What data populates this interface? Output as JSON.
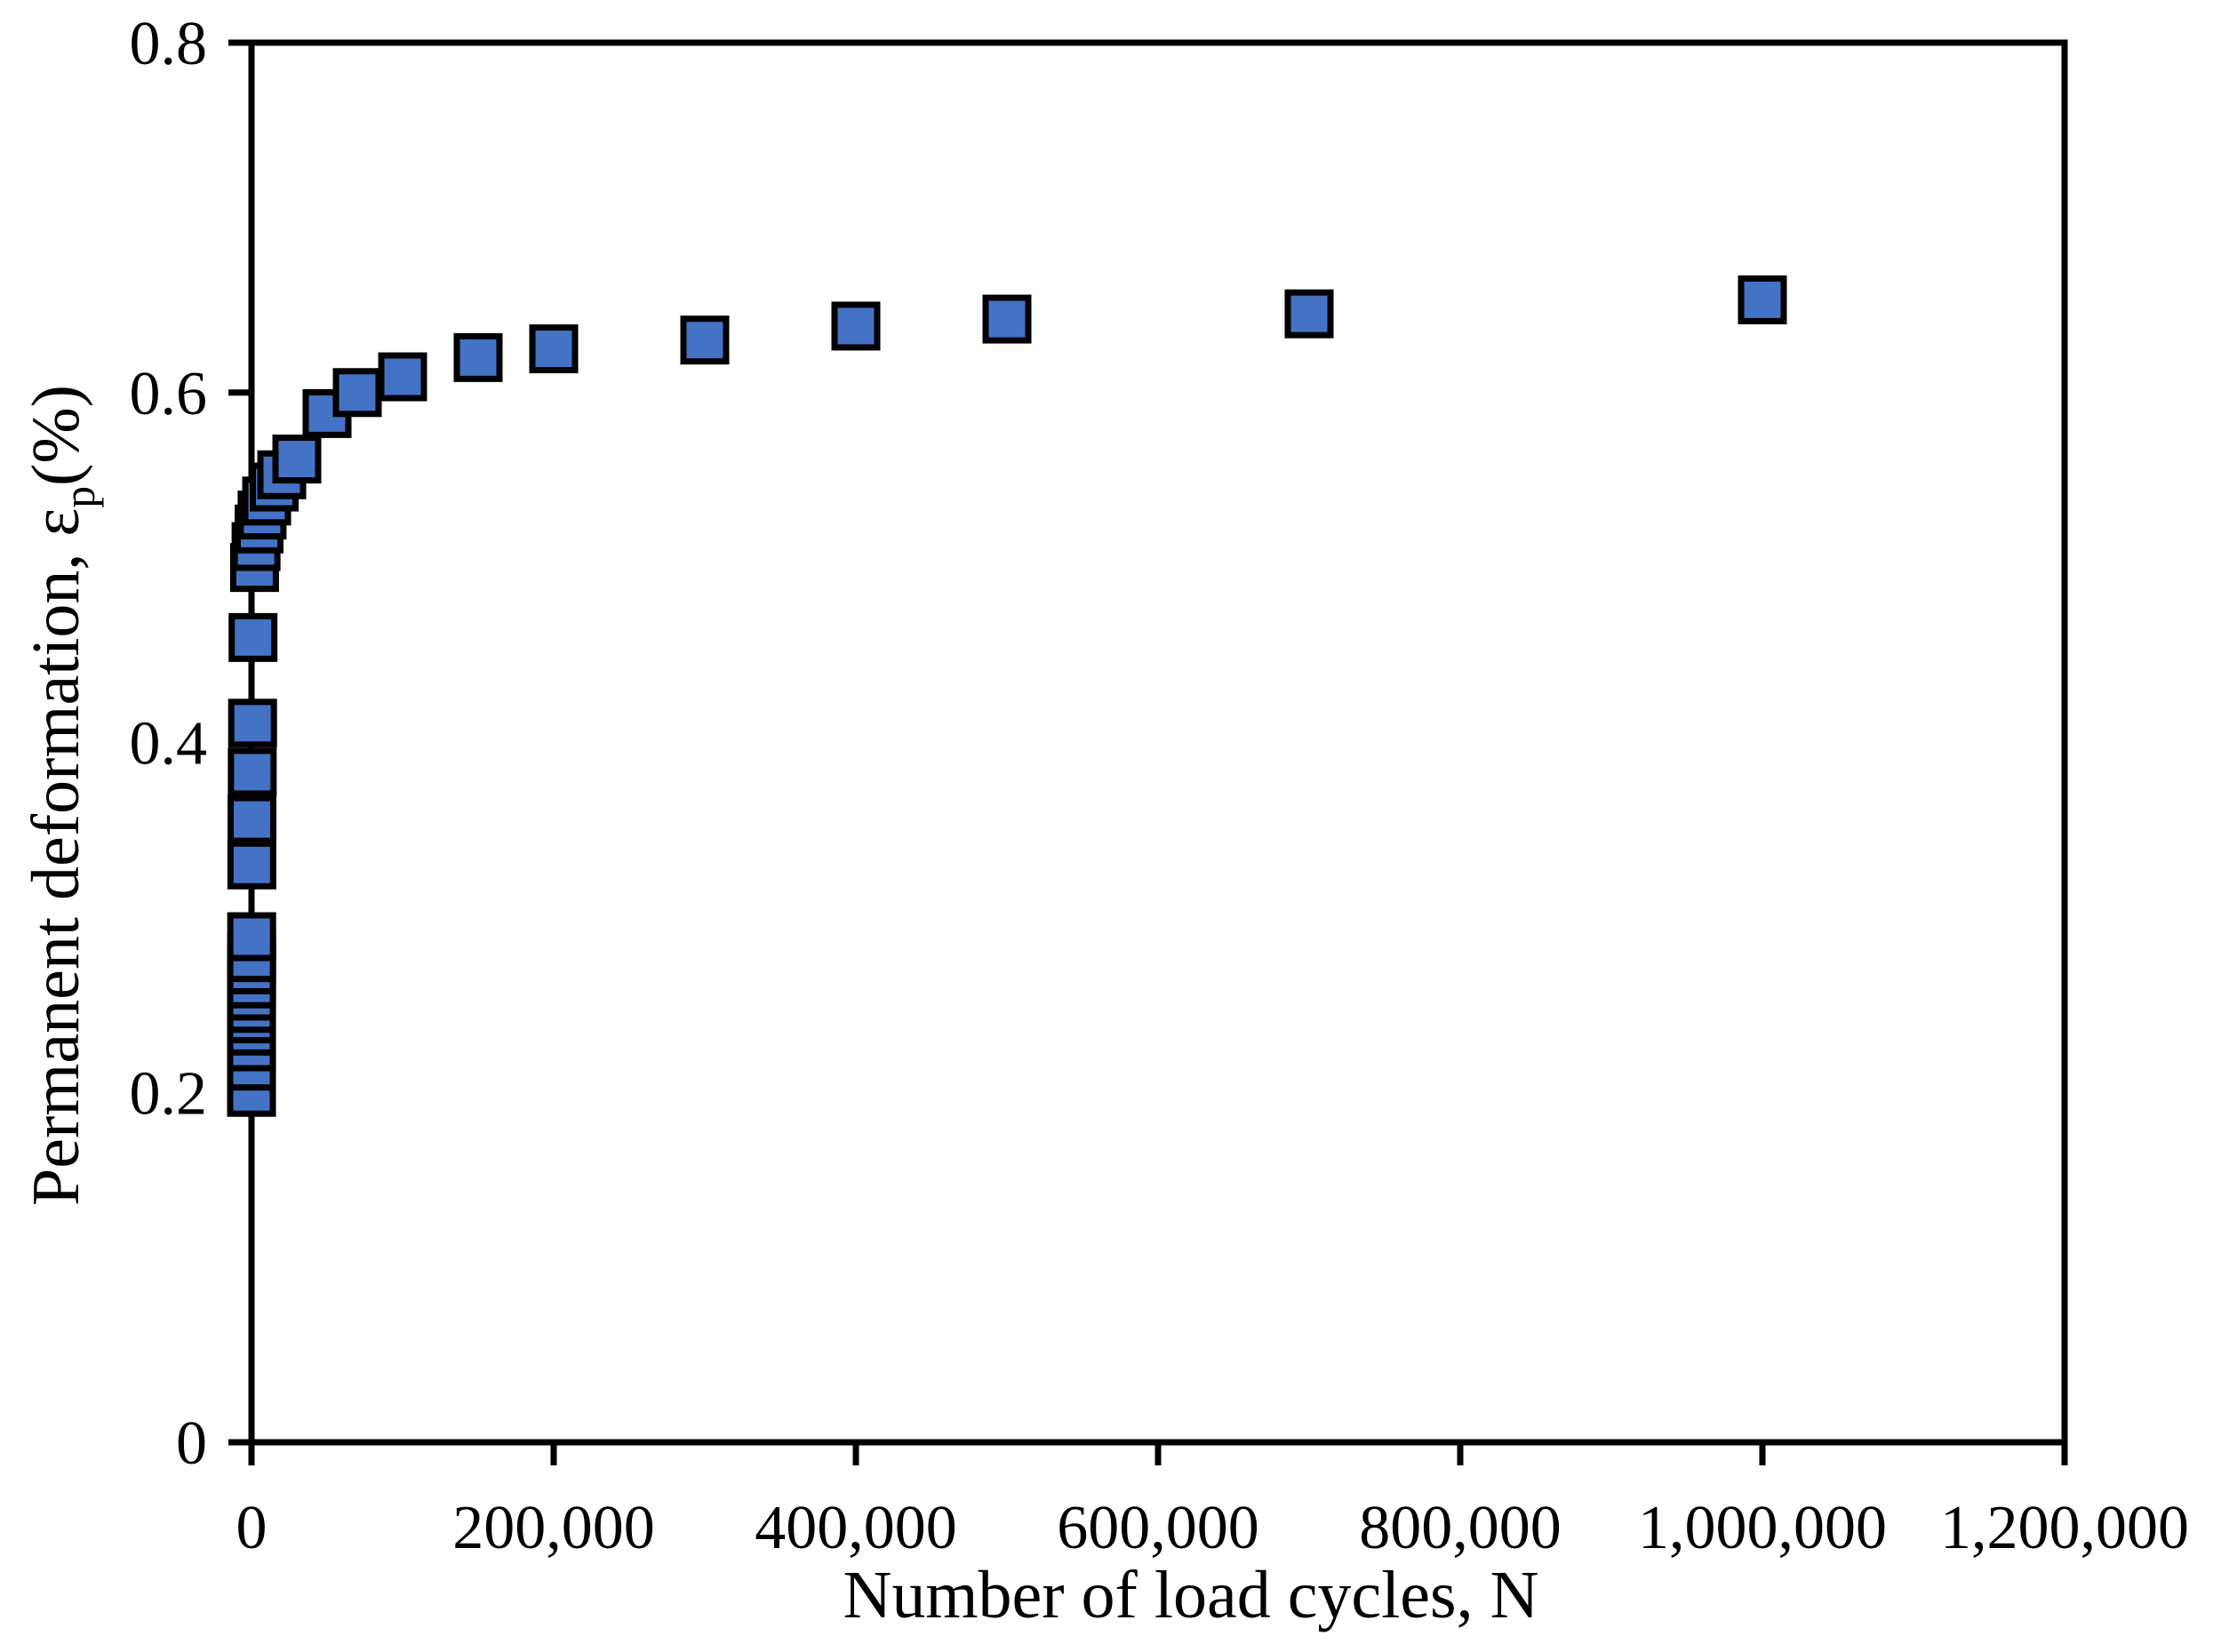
{
  "page": {
    "background": "#ffffff",
    "text_color": "#000000"
  },
  "chart_data": {
    "type": "scatter",
    "title": "",
    "xlabel": "Number of load cycles, N",
    "ylabel_main": "Permanent deformation, ε",
    "ylabel_sub": "p",
    "ylabel_suffix": "(%)",
    "xlim": [
      0,
      1200000
    ],
    "ylim": [
      0,
      0.8
    ],
    "grid": false,
    "legend": null,
    "axis_color": "#000000",
    "frame": true,
    "x_ticks": [
      {
        "value": 0,
        "label": "0"
      },
      {
        "value": 200000,
        "label": "200,000"
      },
      {
        "value": 400000,
        "label": "400,000"
      },
      {
        "value": 600000,
        "label": "600,000"
      },
      {
        "value": 800000,
        "label": "800,000"
      },
      {
        "value": 1000000,
        "label": "1,000,000"
      },
      {
        "value": 1200000,
        "label": "1,200,000"
      }
    ],
    "y_ticks": [
      {
        "value": 0,
        "label": "0"
      },
      {
        "value": 0.2,
        "label": "0.2"
      },
      {
        "value": 0.4,
        "label": "0.4"
      },
      {
        "value": 0.6,
        "label": "0.6"
      },
      {
        "value": 0.8,
        "label": "0.8"
      }
    ],
    "marker": {
      "shape": "square",
      "fill": "#4472C4",
      "stroke": "#000000"
    },
    "series": [
      {
        "name": "Permanent deformation",
        "points": [
          [
            1,
            0.2
          ],
          [
            2,
            0.215
          ],
          [
            3,
            0.226
          ],
          [
            5,
            0.235
          ],
          [
            7,
            0.242
          ],
          [
            10,
            0.248
          ],
          [
            20,
            0.255
          ],
          [
            30,
            0.262
          ],
          [
            50,
            0.27
          ],
          [
            70,
            0.277
          ],
          [
            100,
            0.289
          ],
          [
            200,
            0.33
          ],
          [
            300,
            0.356
          ],
          [
            500,
            0.383
          ],
          [
            700,
            0.411
          ],
          [
            1000,
            0.46
          ],
          [
            2000,
            0.5
          ],
          [
            3000,
            0.512
          ],
          [
            5000,
            0.522
          ],
          [
            7000,
            0.53
          ],
          [
            10000,
            0.538
          ],
          [
            15000,
            0.546
          ],
          [
            20000,
            0.553
          ],
          [
            30000,
            0.562
          ],
          [
            50000,
            0.588
          ],
          [
            70000,
            0.6
          ],
          [
            100000,
            0.609
          ],
          [
            150000,
            0.62
          ],
          [
            200000,
            0.625
          ],
          [
            300000,
            0.63
          ],
          [
            400000,
            0.638
          ],
          [
            500000,
            0.642
          ],
          [
            700000,
            0.645
          ],
          [
            1000000,
            0.653
          ]
        ]
      }
    ]
  }
}
